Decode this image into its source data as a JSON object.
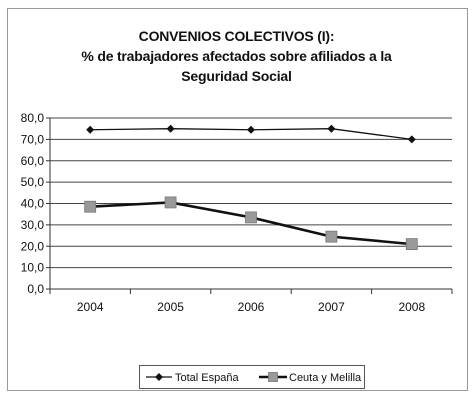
{
  "chart_data": {
    "type": "line",
    "title_lines": [
      "CONVENIOS COLECTIVOS (I):",
      "% de trabajadores afectados sobre afiliados a la",
      "Seguridad Social"
    ],
    "categories": [
      "2004",
      "2005",
      "2006",
      "2007",
      "2008"
    ],
    "ylim": [
      0,
      80
    ],
    "ytick_step": 10,
    "ytick_labels": [
      "0,0",
      "10,0",
      "20,0",
      "30,0",
      "40,0",
      "50,0",
      "60,0",
      "70,0",
      "80,0"
    ],
    "grid": true,
    "legend_position": "bottom",
    "series": [
      {
        "name": "Total España",
        "values": [
          74.5,
          75.0,
          74.5,
          75.0,
          70.0
        ],
        "marker": "diamond",
        "color": "#111111"
      },
      {
        "name": "Ceuta y Melilla",
        "values": [
          38.5,
          40.5,
          33.5,
          24.5,
          21.0
        ],
        "marker": "square",
        "color": "#111111",
        "marker_color": "#9a9a9a"
      }
    ]
  }
}
